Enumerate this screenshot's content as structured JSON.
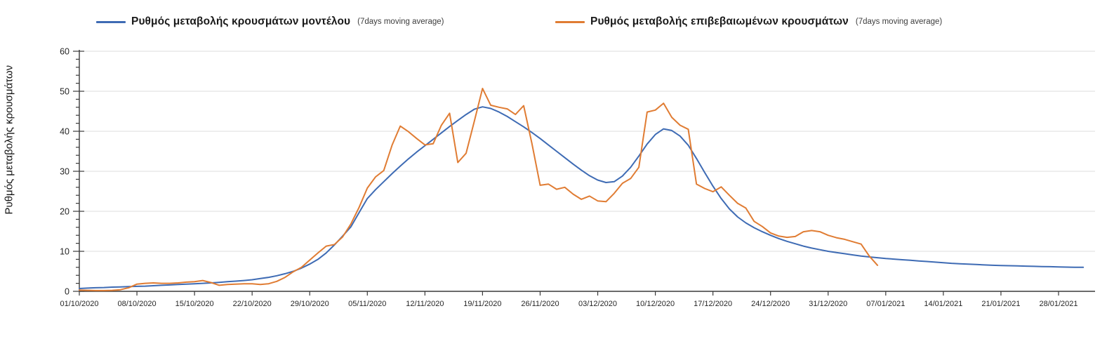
{
  "chart_data": {
    "type": "line",
    "title": "",
    "xlabel": "",
    "ylabel": "Ρυθμός μεταβολής κρουσμάτων",
    "ylim": [
      0,
      60
    ],
    "y_ticks": [
      0,
      10,
      20,
      30,
      40,
      50,
      60
    ],
    "y_minor_tick_step": 2,
    "grid": "horizontal-light-gray, no vertical gridlines",
    "legend_position": "top",
    "x_sampling": "daily from 01/10/2020",
    "x_tick_every_days": 7,
    "x_tick_labels": [
      "01/10/2020",
      "08/10/2020",
      "15/10/2020",
      "22/10/2020",
      "29/10/2020",
      "05/11/2020",
      "12/11/2020",
      "19/11/2020",
      "26/11/2020",
      "03/12/2020",
      "10/12/2020",
      "17/12/2020",
      "24/12/2020",
      "31/12/2020",
      "07/01/2021",
      "14/01/2021",
      "21/01/2021",
      "28/01/2021"
    ],
    "series": [
      {
        "name": "model",
        "label": "Ρυθμός μεταβολής κρουσμάτων μοντέλου",
        "label_suffix": "(7days moving average)",
        "color": "#3E6BB4",
        "start_day": 0,
        "values": [
          0.7,
          0.8,
          0.9,
          0.95,
          1.05,
          1.1,
          1.2,
          1.25,
          1.3,
          1.4,
          1.5,
          1.6,
          1.7,
          1.8,
          1.9,
          2.0,
          2.1,
          2.25,
          2.4,
          2.55,
          2.7,
          2.9,
          3.2,
          3.5,
          3.9,
          4.4,
          5.0,
          5.8,
          6.8,
          8.0,
          9.6,
          11.6,
          13.8,
          16.1,
          19.7,
          23.2,
          25.4,
          27.4,
          29.4,
          31.3,
          33.1,
          34.8,
          36.4,
          38.0,
          39.6,
          41.2,
          42.7,
          44.2,
          45.5,
          46.1,
          45.7,
          44.8,
          43.7,
          42.4,
          41.1,
          39.7,
          38.2,
          36.6,
          35.0,
          33.4,
          31.8,
          30.3,
          28.9,
          27.8,
          27.2,
          27.4,
          28.8,
          31.0,
          33.8,
          36.8,
          39.2,
          40.6,
          40.2,
          38.8,
          36.5,
          33.2,
          29.7,
          26.3,
          23.2,
          20.6,
          18.6,
          17.1,
          15.9,
          14.9,
          14.0,
          13.2,
          12.5,
          11.9,
          11.3,
          10.8,
          10.4,
          10.0,
          9.7,
          9.4,
          9.1,
          8.8,
          8.6,
          8.4,
          8.2,
          8.05,
          7.9,
          7.75,
          7.6,
          7.45,
          7.3,
          7.15,
          7.0,
          6.9,
          6.8,
          6.7,
          6.6,
          6.5,
          6.45,
          6.4,
          6.35,
          6.3,
          6.25,
          6.2,
          6.15,
          6.1,
          6.05,
          6.0,
          6.0
        ]
      },
      {
        "name": "confirmed",
        "label": "Ρυθμός μεταβολής επιβεβαιωμένων κρουσμάτων",
        "label_suffix": "(7days moving average)",
        "color": "#E07C33",
        "start_day": 0,
        "values": [
          0.3,
          0.25,
          0.2,
          0.2,
          0.25,
          0.4,
          0.9,
          1.8,
          2.0,
          2.1,
          2.0,
          2.0,
          2.1,
          2.3,
          2.4,
          2.7,
          2.2,
          1.5,
          1.7,
          1.8,
          1.9,
          1.9,
          1.7,
          1.9,
          2.5,
          3.5,
          4.9,
          6.0,
          7.8,
          9.6,
          11.3,
          11.7,
          13.6,
          16.8,
          21.0,
          25.8,
          28.6,
          30.2,
          36.5,
          41.3,
          39.9,
          38.2,
          36.6,
          36.9,
          41.5,
          44.5,
          32.2,
          34.5,
          42.5,
          50.7,
          46.5,
          46.0,
          45.6,
          44.2,
          46.4,
          37.0,
          26.5,
          26.8,
          25.5,
          26.0,
          24.3,
          23.0,
          23.8,
          22.6,
          22.4,
          24.5,
          27.0,
          28.2,
          31.0,
          44.8,
          45.3,
          47.0,
          43.5,
          41.5,
          40.5,
          26.8,
          25.7,
          24.9,
          26.1,
          24.0,
          22.0,
          20.8,
          17.5,
          16.2,
          14.6,
          13.8,
          13.5,
          13.7,
          14.9,
          15.2,
          14.9,
          14.0,
          13.4,
          13.0,
          12.4,
          11.8,
          8.8,
          6.5
        ]
      }
    ]
  },
  "colors": {
    "grid": "#dcdcdc",
    "axis": "#3a3a3a",
    "tick_label": "#262626",
    "legend_text": "#1a1a1a"
  }
}
